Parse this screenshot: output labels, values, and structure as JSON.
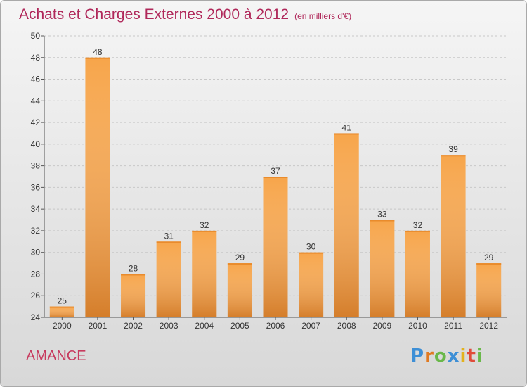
{
  "title": "Achats et Charges Externes 2000 à 2012",
  "unit": "(en milliers d'€)",
  "commune": "AMANCE",
  "logo": {
    "p": "P",
    "r": "r",
    "o": "o",
    "x": "x",
    "i1": "i",
    "t": "t",
    "i2": "i"
  },
  "colors": {
    "bar_light": "#f7a54a",
    "bar_dark": "#d0721f",
    "title": "#b0285a"
  },
  "chart_data": {
    "type": "bar",
    "categories": [
      "2000",
      "2001",
      "2002",
      "2003",
      "2004",
      "2005",
      "2006",
      "2007",
      "2008",
      "2009",
      "2010",
      "2011",
      "2012"
    ],
    "values": [
      25,
      48,
      28,
      31,
      32,
      29,
      37,
      30,
      41,
      33,
      32,
      39,
      29
    ],
    "ylim": [
      24,
      50
    ],
    "yticks": [
      24,
      26,
      28,
      30,
      32,
      34,
      36,
      38,
      40,
      42,
      44,
      46,
      48,
      50
    ],
    "grid": true
  }
}
